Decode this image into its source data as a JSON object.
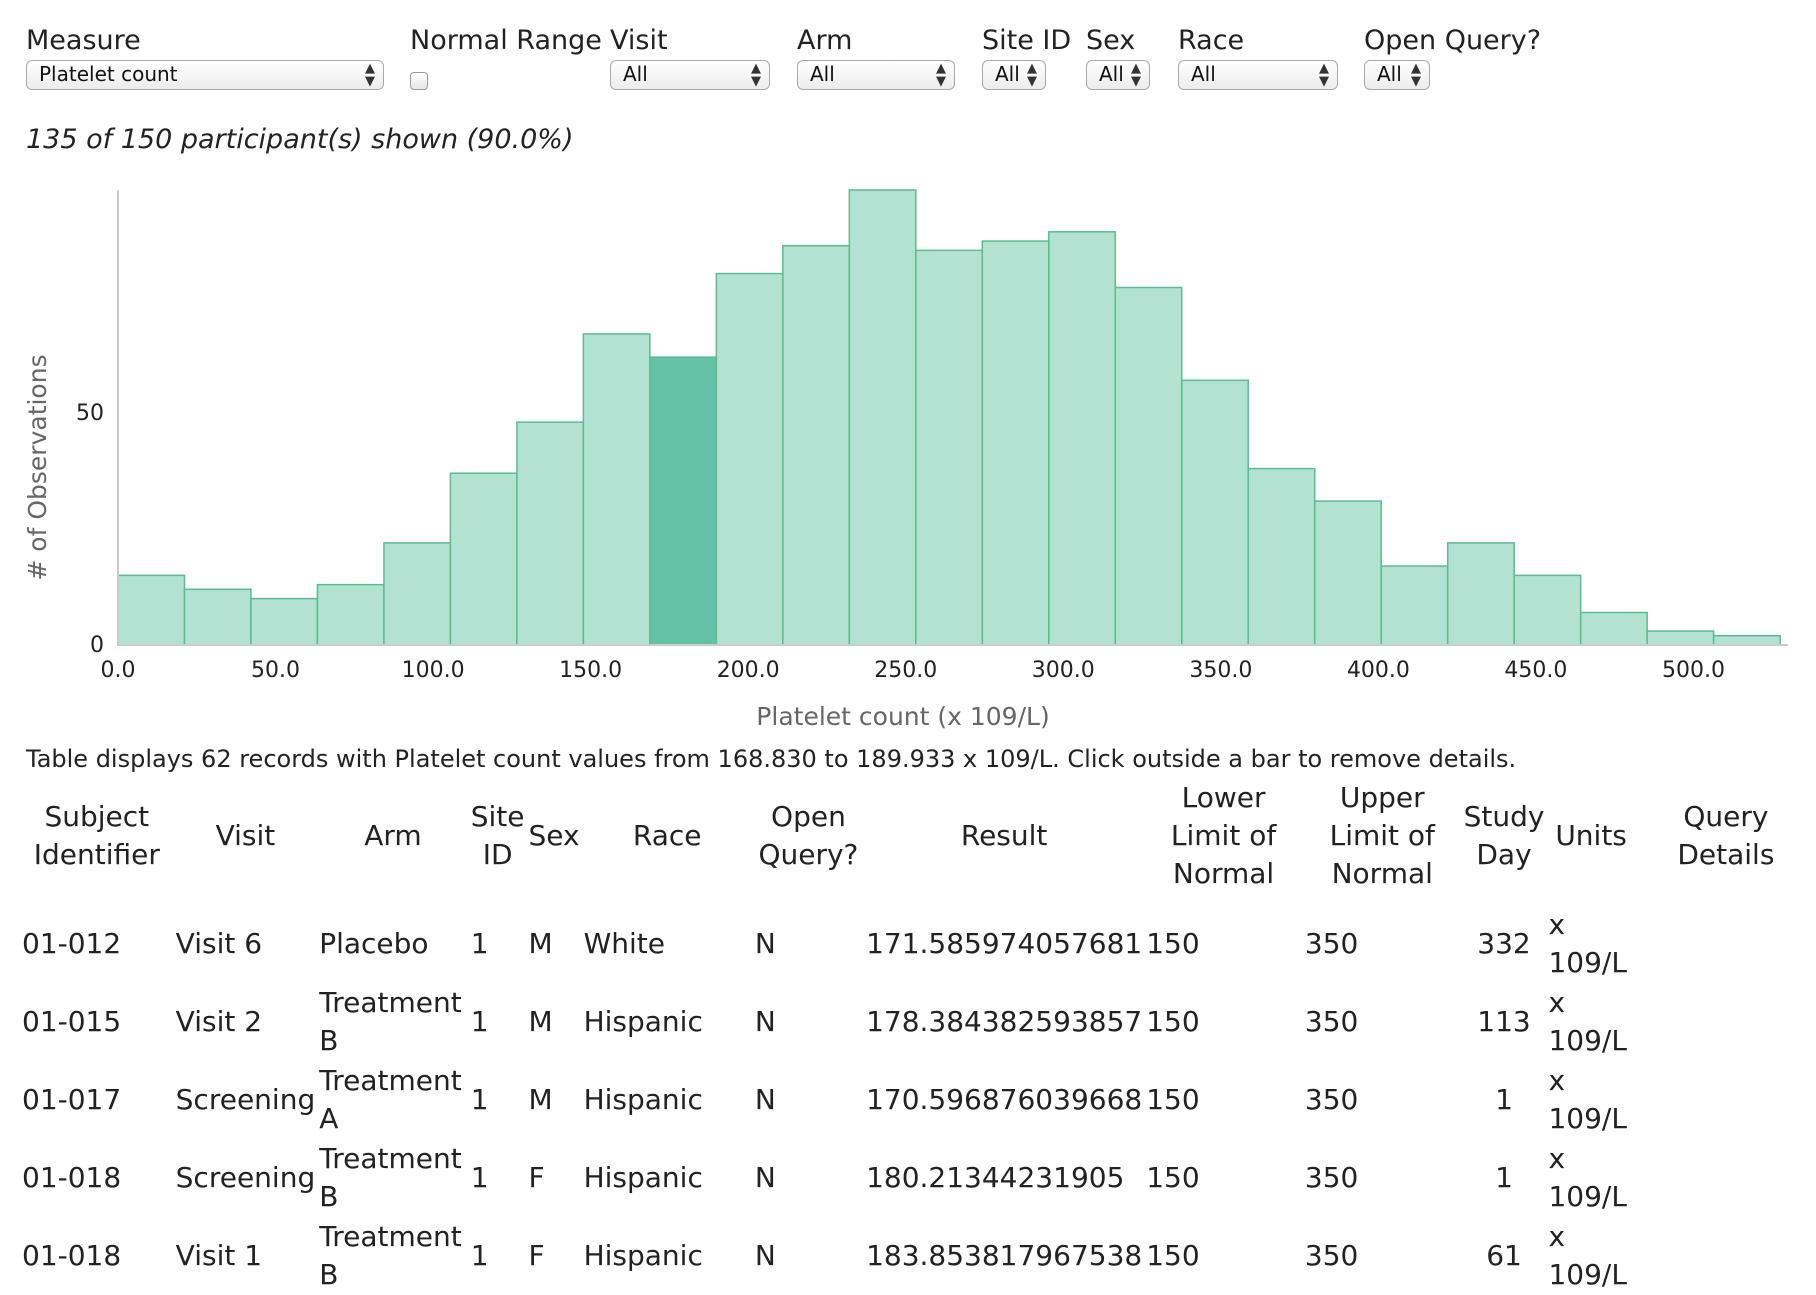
{
  "controls": {
    "measure": {
      "label": "Measure",
      "value": "Platelet count"
    },
    "normal_range": {
      "label": "Normal Range"
    },
    "visit": {
      "label": "Visit",
      "value": "All"
    },
    "arm": {
      "label": "Arm",
      "value": "All"
    },
    "site_id": {
      "label": "Site ID",
      "value": "All"
    },
    "sex": {
      "label": "Sex",
      "value": "All"
    },
    "race": {
      "label": "Race",
      "value": "All"
    },
    "open_query": {
      "label": "Open Query?",
      "value": "All"
    }
  },
  "summary": "135 of 150 participant(s) shown (90.0%)",
  "chart_data": {
    "type": "bar",
    "title": "",
    "xlabel": "Platelet count (x 109/L)",
    "ylabel": "# of Observations",
    "bin_width": 21.1,
    "x_start": 0.0,
    "bin_counts": [
      15,
      12,
      10,
      13,
      22,
      37,
      48,
      67,
      62,
      80,
      86,
      98,
      85,
      87,
      89,
      77,
      57,
      38,
      31,
      17,
      22,
      15,
      7,
      3,
      2
    ],
    "selected_bin": 8,
    "xlim": [
      0,
      530
    ],
    "ylim": [
      0,
      98
    ],
    "x_ticks": [
      "0.0",
      "50.0",
      "100.0",
      "150.0",
      "200.0",
      "250.0",
      "300.0",
      "350.0",
      "400.0",
      "450.0",
      "500.0"
    ],
    "y_ticks": [
      "0",
      "50"
    ],
    "colors": {
      "bar": "#b2e2d1",
      "selected": "#66c2a5",
      "stroke": "#5fb994",
      "axis": "#cccccc"
    }
  },
  "details": {
    "message": "Table displays 62 records with Platelet count values from 168.830 to 189.933 x 109/L. Click outside a bar to remove details.",
    "columns": {
      "subject": "Subject Identifier",
      "visit": "Visit",
      "arm": "Arm",
      "site": "Site ID",
      "sex": "Sex",
      "race": "Race",
      "open_query": "Open Query?",
      "result": "Result",
      "lln": "Lower Limit of Normal",
      "uln": "Upper Limit of Normal",
      "study_day": "Study Day",
      "units": "Units",
      "query_details": "Query Details"
    },
    "rows": [
      {
        "subject": "01-012",
        "visit": "Visit 6",
        "arm": "Placebo",
        "site": "1",
        "sex": "M",
        "race": "White",
        "open_query": "N",
        "result": "171.585974057681",
        "lln": "150",
        "uln": "350",
        "study_day": "332",
        "units": "x 109/L",
        "query_details": ""
      },
      {
        "subject": "01-015",
        "visit": "Visit 2",
        "arm": "Treatment B",
        "site": "1",
        "sex": "M",
        "race": "Hispanic",
        "open_query": "N",
        "result": "178.384382593857",
        "lln": "150",
        "uln": "350",
        "study_day": "113",
        "units": "x 109/L",
        "query_details": ""
      },
      {
        "subject": "01-017",
        "visit": "Screening",
        "arm": "Treatment A",
        "site": "1",
        "sex": "M",
        "race": "Hispanic",
        "open_query": "N",
        "result": "170.596876039668",
        "lln": "150",
        "uln": "350",
        "study_day": "1",
        "units": "x 109/L",
        "query_details": ""
      },
      {
        "subject": "01-018",
        "visit": "Screening",
        "arm": "Treatment B",
        "site": "1",
        "sex": "F",
        "race": "Hispanic",
        "open_query": "N",
        "result": "180.21344231905",
        "lln": "150",
        "uln": "350",
        "study_day": "1",
        "units": "x 109/L",
        "query_details": ""
      },
      {
        "subject": "01-018",
        "visit": "Visit 1",
        "arm": "Treatment B",
        "site": "1",
        "sex": "F",
        "race": "Hispanic",
        "open_query": "N",
        "result": "183.853817967538",
        "lln": "150",
        "uln": "350",
        "study_day": "61",
        "units": "x 109/L",
        "query_details": ""
      }
    ]
  }
}
